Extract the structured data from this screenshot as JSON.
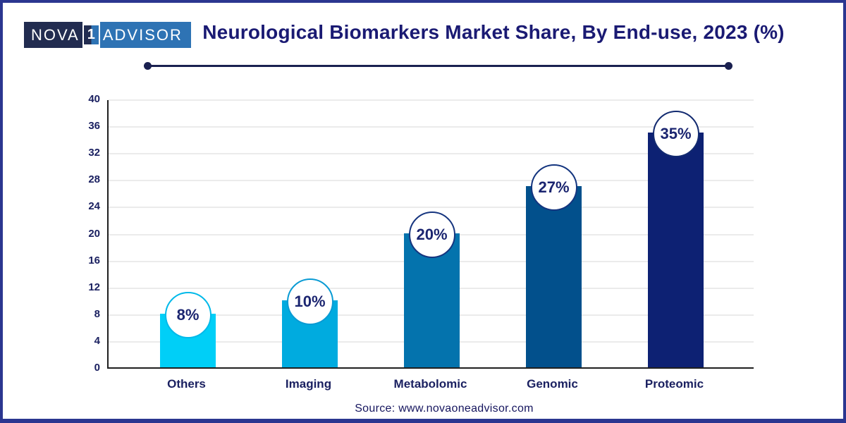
{
  "logo": {
    "nova": "NOVA",
    "one": "1",
    "advisor": "ADVISOR",
    "bg_dark": "#222c50",
    "bg_blue": "#2e73b4"
  },
  "header": {
    "title": "Neurological Biomarkers Market Share, By End-use, 2023 (%)",
    "title_color": "#1a1a73",
    "accent_navy": "#1a2050"
  },
  "chart_data": {
    "type": "bar",
    "title": "Neurological Biomarkers Market Share, By End-use, 2023 (%)",
    "categories": [
      "Others",
      "Imaging",
      "Metabolomic",
      "Genomic",
      "Proteomic"
    ],
    "values": [
      8,
      10,
      20,
      27,
      35
    ],
    "labels": [
      "8%",
      "10%",
      "20%",
      "27%",
      "35%"
    ],
    "bar_colors": [
      "#00cff7",
      "#00abdf",
      "#0473ad",
      "#02508c",
      "#0d2173"
    ],
    "circle_border_colors": [
      "#00b9e9",
      "#0a9bd4",
      "#16357f",
      "#14357f",
      "#122a70"
    ],
    "xlabel": "",
    "ylabel": "",
    "ylim": [
      0,
      40
    ],
    "ytick_step": 4,
    "yticks": [
      0,
      4,
      8,
      12,
      16,
      20,
      24,
      28,
      32,
      36,
      40
    ],
    "grid": true,
    "legend": false,
    "grid_color": "#ebebeb",
    "axis_color": "#1f1f1f",
    "label_color": "#1b2161"
  },
  "footer": {
    "source": "Source: www.novaoneadvisor.com"
  }
}
